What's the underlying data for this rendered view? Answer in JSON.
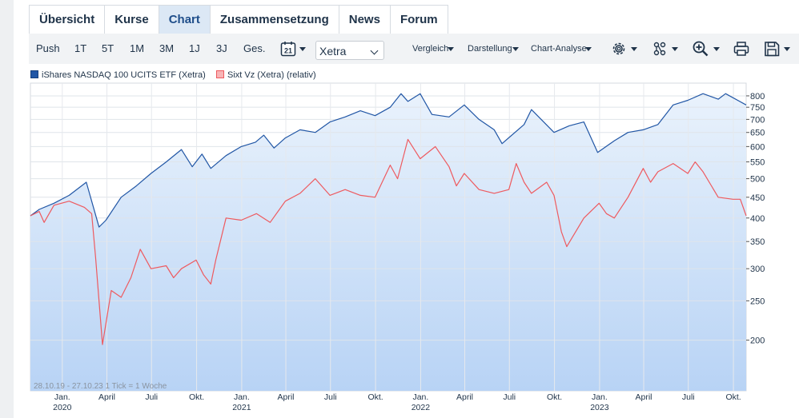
{
  "tabs": [
    "Übersicht",
    "Kurse",
    "Chart",
    "Zusammensetzung",
    "News",
    "Forum"
  ],
  "active_tab": "Chart",
  "ranges": [
    "Push",
    "1T",
    "5T",
    "1M",
    "3M",
    "1J",
    "3J",
    "Ges."
  ],
  "active_range": "3M",
  "calendar_day": "21",
  "exchange": "Xetra",
  "menus": {
    "compare": "Vergleich",
    "display": "Darstellung",
    "analysis": "Chart-Analyse"
  },
  "icons": [
    "gear-icon",
    "share-network-icon",
    "zoom-icon",
    "print-icon",
    "save-icon"
  ],
  "colors": {
    "primary": "#2156a5",
    "secondary": "#ee5a5f",
    "area_top": "#e9f2fc",
    "area_bottom": "#b8d3f5",
    "accent_tab": "#dce8f5"
  },
  "chart_data": {
    "type": "line",
    "y_scale": "log",
    "ylim": [
      150,
      860
    ],
    "y_ticks": [
      200,
      250,
      300,
      350,
      400,
      450,
      500,
      550,
      600,
      650,
      700,
      750,
      800
    ],
    "x_range": [
      "2019-10-28",
      "2023-10-27"
    ],
    "date_range_note": "28.10.19 - 27.10.23",
    "tick_note": "1 Tick = 1 Woche",
    "x_ticks": [
      {
        "date": "2020-01-01",
        "label": "Jan.",
        "year": "2020"
      },
      {
        "date": "2020-04-01",
        "label": "April"
      },
      {
        "date": "2020-07-01",
        "label": "Juli"
      },
      {
        "date": "2020-10-01",
        "label": "Okt."
      },
      {
        "date": "2021-01-01",
        "label": "Jan.",
        "year": "2021"
      },
      {
        "date": "2021-04-01",
        "label": "April"
      },
      {
        "date": "2021-07-01",
        "label": "Juli"
      },
      {
        "date": "2021-10-01",
        "label": "Okt."
      },
      {
        "date": "2022-01-01",
        "label": "Jan.",
        "year": "2022"
      },
      {
        "date": "2022-04-01",
        "label": "April"
      },
      {
        "date": "2022-07-01",
        "label": "Juli"
      },
      {
        "date": "2022-10-01",
        "label": "Okt."
      },
      {
        "date": "2023-01-01",
        "label": "Jan.",
        "year": "2023"
      },
      {
        "date": "2023-04-01",
        "label": "April"
      },
      {
        "date": "2023-07-01",
        "label": "Juli"
      },
      {
        "date": "2023-10-01",
        "label": "Okt."
      }
    ],
    "grid": true,
    "legend_position": "top-left",
    "series": [
      {
        "name": "iShares NASDAQ 100 UCITS ETF (Xetra)",
        "color": "#2156a5",
        "fill": true,
        "points": [
          [
            "2019-10-28",
            405
          ],
          [
            "2019-11-15",
            420
          ],
          [
            "2019-12-15",
            435
          ],
          [
            "2020-01-15",
            455
          ],
          [
            "2020-02-19",
            490
          ],
          [
            "2020-03-16",
            380
          ],
          [
            "2020-03-30",
            395
          ],
          [
            "2020-04-30",
            450
          ],
          [
            "2020-05-31",
            480
          ],
          [
            "2020-06-30",
            515
          ],
          [
            "2020-07-31",
            550
          ],
          [
            "2020-08-31",
            590
          ],
          [
            "2020-09-22",
            535
          ],
          [
            "2020-10-12",
            575
          ],
          [
            "2020-10-30",
            530
          ],
          [
            "2020-11-30",
            570
          ],
          [
            "2020-12-31",
            600
          ],
          [
            "2021-01-29",
            615
          ],
          [
            "2021-02-15",
            640
          ],
          [
            "2021-03-08",
            595
          ],
          [
            "2021-03-31",
            630
          ],
          [
            "2021-04-30",
            660
          ],
          [
            "2021-05-31",
            650
          ],
          [
            "2021-06-30",
            690
          ],
          [
            "2021-07-31",
            710
          ],
          [
            "2021-08-31",
            735
          ],
          [
            "2021-09-30",
            715
          ],
          [
            "2021-10-31",
            750
          ],
          [
            "2021-11-22",
            810
          ],
          [
            "2021-12-06",
            775
          ],
          [
            "2021-12-31",
            810
          ],
          [
            "2022-01-24",
            720
          ],
          [
            "2022-02-28",
            710
          ],
          [
            "2022-03-31",
            760
          ],
          [
            "2022-04-30",
            700
          ],
          [
            "2022-05-31",
            660
          ],
          [
            "2022-06-16",
            610
          ],
          [
            "2022-07-31",
            680
          ],
          [
            "2022-08-15",
            740
          ],
          [
            "2022-09-30",
            650
          ],
          [
            "2022-10-31",
            675
          ],
          [
            "2022-11-30",
            690
          ],
          [
            "2022-12-28",
            580
          ],
          [
            "2023-01-31",
            620
          ],
          [
            "2023-02-28",
            650
          ],
          [
            "2023-03-31",
            660
          ],
          [
            "2023-04-30",
            680
          ],
          [
            "2023-05-31",
            760
          ],
          [
            "2023-06-30",
            780
          ],
          [
            "2023-07-31",
            810
          ],
          [
            "2023-08-31",
            785
          ],
          [
            "2023-09-15",
            810
          ],
          [
            "2023-10-27",
            760
          ]
        ]
      },
      {
        "name": "Sixt Vz (Xetra) (relativ)",
        "color": "#ee5a5f",
        "fill": false,
        "points": [
          [
            "2019-10-28",
            405
          ],
          [
            "2019-11-15",
            415
          ],
          [
            "2019-11-25",
            390
          ],
          [
            "2019-12-15",
            430
          ],
          [
            "2020-01-15",
            440
          ],
          [
            "2020-02-15",
            425
          ],
          [
            "2020-03-01",
            410
          ],
          [
            "2020-03-09",
            320
          ],
          [
            "2020-03-23",
            195
          ],
          [
            "2020-04-10",
            265
          ],
          [
            "2020-04-30",
            255
          ],
          [
            "2020-05-20",
            285
          ],
          [
            "2020-06-08",
            335
          ],
          [
            "2020-06-30",
            300
          ],
          [
            "2020-07-31",
            305
          ],
          [
            "2020-08-15",
            285
          ],
          [
            "2020-08-31",
            300
          ],
          [
            "2020-09-30",
            315
          ],
          [
            "2020-10-15",
            290
          ],
          [
            "2020-10-30",
            275
          ],
          [
            "2020-11-09",
            315
          ],
          [
            "2020-11-30",
            400
          ],
          [
            "2020-12-31",
            395
          ],
          [
            "2021-01-31",
            410
          ],
          [
            "2021-02-28",
            390
          ],
          [
            "2021-03-31",
            440
          ],
          [
            "2021-04-30",
            460
          ],
          [
            "2021-05-31",
            500
          ],
          [
            "2021-06-30",
            455
          ],
          [
            "2021-07-31",
            470
          ],
          [
            "2021-08-31",
            455
          ],
          [
            "2021-09-30",
            450
          ],
          [
            "2021-10-31",
            540
          ],
          [
            "2021-11-15",
            500
          ],
          [
            "2021-12-06",
            625
          ],
          [
            "2021-12-31",
            560
          ],
          [
            "2022-01-31",
            600
          ],
          [
            "2022-02-28",
            535
          ],
          [
            "2022-03-15",
            480
          ],
          [
            "2022-03-31",
            515
          ],
          [
            "2022-04-30",
            470
          ],
          [
            "2022-05-31",
            460
          ],
          [
            "2022-06-30",
            470
          ],
          [
            "2022-07-15",
            545
          ],
          [
            "2022-07-31",
            490
          ],
          [
            "2022-08-15",
            460
          ],
          [
            "2022-09-15",
            490
          ],
          [
            "2022-09-30",
            455
          ],
          [
            "2022-10-15",
            370
          ],
          [
            "2022-10-26",
            340
          ],
          [
            "2022-11-30",
            400
          ],
          [
            "2022-12-31",
            435
          ],
          [
            "2023-01-15",
            410
          ],
          [
            "2023-01-31",
            400
          ],
          [
            "2023-02-28",
            450
          ],
          [
            "2023-03-31",
            530
          ],
          [
            "2023-04-15",
            490
          ],
          [
            "2023-04-30",
            520
          ],
          [
            "2023-05-31",
            545
          ],
          [
            "2023-06-30",
            515
          ],
          [
            "2023-07-15",
            550
          ],
          [
            "2023-07-31",
            520
          ],
          [
            "2023-08-31",
            450
          ],
          [
            "2023-09-30",
            445
          ],
          [
            "2023-10-15",
            445
          ],
          [
            "2023-10-27",
            405
          ]
        ]
      }
    ]
  }
}
